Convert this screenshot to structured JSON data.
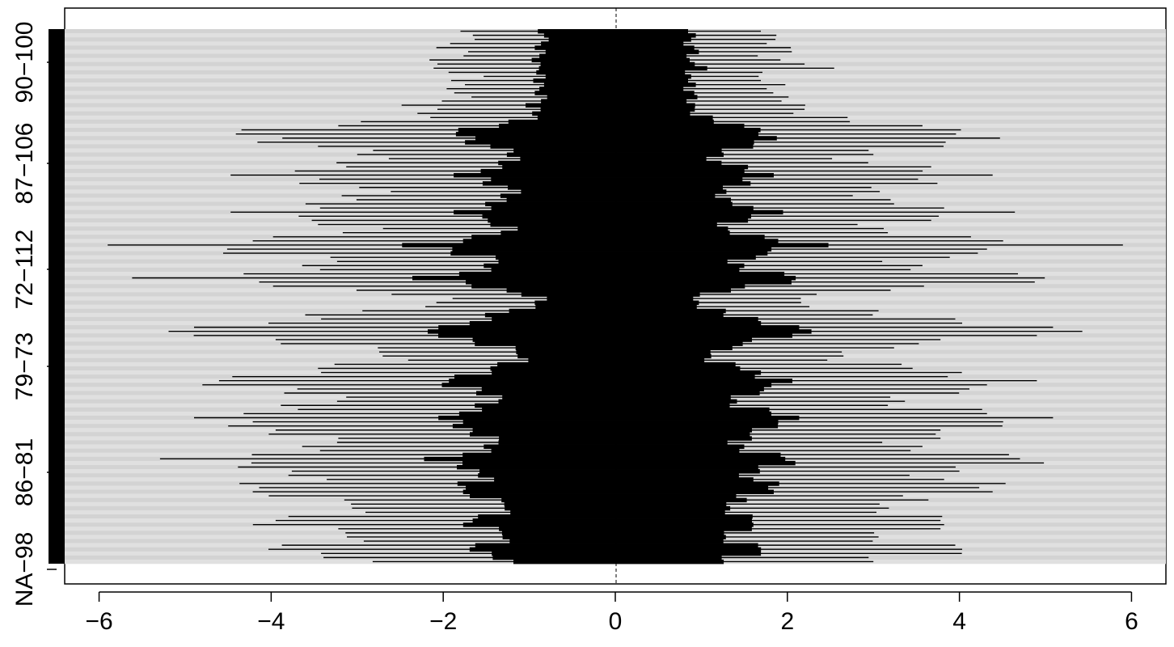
{
  "chart_data": {
    "type": "interval",
    "orientation": "horizontal",
    "xlim": [
      -6.4,
      6.4
    ],
    "x_ticks": [
      -6,
      -4,
      -2,
      0,
      2,
      4,
      6
    ],
    "x_tick_labels": [
      "−6",
      "−4",
      "−2",
      "0",
      "2",
      "4",
      "6"
    ],
    "y_tick_labels": [
      "NA−98",
      "86−81",
      "79−73",
      "72−112",
      "87−106",
      "90−100"
    ],
    "reference_line": 0,
    "n_intervals": 130,
    "interval_half_widths": [
      1.8,
      1.8,
      1.9,
      2.0,
      2.0,
      1.9,
      1.8,
      2.0,
      2.2,
      2.4,
      1.9,
      1.7,
      1.8,
      1.9,
      2.0,
      1.8,
      1.9,
      2.1,
      2.3,
      2.2,
      2.3,
      2.5,
      2.9,
      3.5,
      4.1,
      4.5,
      4.3,
      4.0,
      3.6,
      3.2,
      3.0,
      2.8,
      3.0,
      3.4,
      3.8,
      4.3,
      4.0,
      3.6,
      3.1,
      2.9,
      3.0,
      3.2,
      3.6,
      3.9,
      4.3,
      4.0,
      3.6,
      3.2,
      3.0,
      3.3,
      3.9,
      4.9,
      5.9,
      4.8,
      4.3,
      3.6,
      3.3,
      3.5,
      3.9,
      4.5,
      5.2,
      4.6,
      3.9,
      3.2,
      2.6,
      2.2,
      2.0,
      2.4,
      3.0,
      3.4,
      3.8,
      4.2,
      4.8,
      5.9,
      4.9,
      4.2,
      3.6,
      3.0,
      2.8,
      2.6,
      2.8,
      3.2,
      3.6,
      3.8,
      4.2,
      4.9,
      4.8,
      4.2,
      3.7,
      3.4,
      3.3,
      3.6,
      4.1,
      4.5,
      4.8,
      4.9,
      4.5,
      4.2,
      3.8,
      3.5,
      3.3,
      3.5,
      3.9,
      4.4,
      4.9,
      4.7,
      4.3,
      4.0,
      3.8,
      3.9,
      4.2,
      4.5,
      4.3,
      3.8,
      3.5,
      3.2,
      3.0,
      3.3,
      3.8,
      4.2,
      3.9,
      3.5,
      3.2,
      3.0,
      3.4,
      3.8,
      4.2,
      3.8,
      3.2,
      3.0
    ],
    "interval_left_factors": [
      1.0,
      0.92,
      0.86,
      0.96,
      1.04,
      0.9,
      0.98,
      1.08,
      0.94,
      0.88,
      1.02,
      0.9,
      1.06,
      0.92,
      0.98,
      1.04,
      0.88,
      0.96,
      1.08,
      0.94,
      1.0,
      0.86,
      1.02,
      0.92,
      1.06,
      0.98,
      0.9,
      1.04,
      0.96,
      0.88,
      1.0,
      0.94,
      1.08,
      0.92,
      0.98,
      1.04,
      0.86,
      1.02,
      0.96,
      0.9,
      1.06,
      0.94,
      1.0,
      0.88,
      1.04,
      0.92,
      0.98,
      1.08,
      0.9,
      0.96,
      1.02,
      0.86,
      1.0,
      0.94,
      1.06,
      0.92,
      0.98,
      1.04,
      0.88,
      0.96,
      1.08,
      0.9,
      1.02,
      0.94,
      1.0,
      0.86,
      1.04,
      0.92,
      0.98,
      1.06,
      0.9,
      0.96,
      1.02,
      0.88,
      1.0,
      0.94,
      1.08,
      0.92,
      0.98,
      1.04,
      0.86,
      1.02,
      0.96,
      0.9,
      1.06,
      0.94,
      1.0,
      0.88,
      1.04,
      0.92,
      0.98,
      1.08,
      0.9,
      0.96,
      1.02,
      0.86,
      1.0,
      0.94,
      1.06,
      0.92,
      0.98,
      1.04,
      0.88,
      0.96,
      1.08,
      0.9,
      1.02,
      0.94,
      1.0,
      0.86,
      1.04,
      0.92,
      0.98,
      1.06,
      0.9,
      0.96,
      1.02,
      0.88,
      1.0,
      0.94,
      1.08,
      0.92,
      0.98,
      1.04,
      0.86,
      1.02,
      0.96,
      0.9,
      1.06,
      0.94
    ],
    "interval_right_factors": [
      0.94,
      1.04,
      0.98,
      0.88,
      1.02,
      1.08,
      0.92,
      0.96,
      1.0,
      1.06,
      0.9,
      0.98,
      0.94,
      1.04,
      0.88,
      1.02,
      1.06,
      0.92,
      0.96,
      1.0,
      0.9,
      1.08,
      0.94,
      1.02,
      0.98,
      0.88,
      1.04,
      0.96,
      1.06,
      0.92,
      1.0,
      0.9,
      0.98,
      1.08,
      0.94,
      1.02,
      0.88,
      1.04,
      0.96,
      1.06,
      0.92,
      1.0,
      0.9,
      0.98,
      1.08,
      0.94,
      1.02,
      0.88,
      1.04,
      0.96,
      1.06,
      0.92,
      1.0,
      0.9,
      0.98,
      1.08,
      0.94,
      1.02,
      0.88,
      1.04,
      0.96,
      1.06,
      0.92,
      1.0,
      0.9,
      0.98,
      1.08,
      0.94,
      1.02,
      0.88,
      1.04,
      0.96,
      1.06,
      0.92,
      1.0,
      0.9,
      0.98,
      1.08,
      0.94,
      1.02,
      0.88,
      1.04,
      0.96,
      1.06,
      0.92,
      1.0,
      0.9,
      0.98,
      1.08,
      0.94,
      1.02,
      0.88,
      1.04,
      0.96,
      1.06,
      0.92,
      1.0,
      0.9,
      0.98,
      1.08,
      0.94,
      1.02,
      0.88,
      1.04,
      0.96,
      1.06,
      0.92,
      1.0,
      0.9,
      0.98,
      1.08,
      0.94,
      1.02,
      0.88,
      1.04,
      0.96,
      1.06,
      0.92,
      1.0,
      0.9,
      0.98,
      1.08,
      0.94,
      1.02,
      0.88,
      1.04,
      0.96,
      1.06,
      0.92,
      1.0
    ],
    "band_colors": [
      "#d3d3d3",
      "#e0e0e0"
    ],
    "interval_color": "#000000"
  }
}
